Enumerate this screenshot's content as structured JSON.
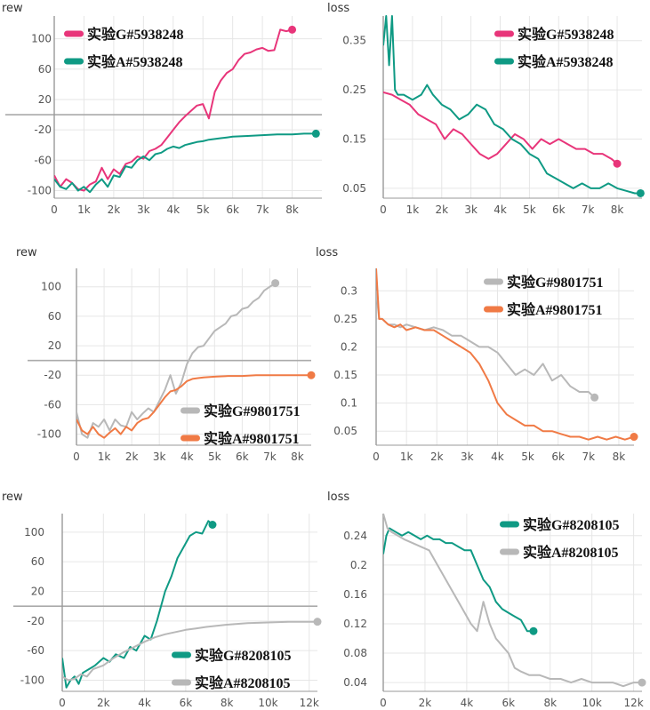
{
  "colors": {
    "pink": "#e8357a",
    "teal": "#0f9a84",
    "gray": "#b8b8b8",
    "orange": "#f07a45",
    "grid": "#e6e6e6",
    "axis": "#999999",
    "ref": "#aaaaaa"
  },
  "chart_data": [
    {
      "type": "line",
      "title": "rew",
      "xlim": [
        0,
        9000
      ],
      "ylim": [
        -110,
        130
      ],
      "xticks": [
        0,
        1000,
        2000,
        3000,
        4000,
        5000,
        6000,
        7000,
        8000
      ],
      "xtick_labels": [
        "0",
        "1k",
        "2k",
        "3k",
        "4k",
        "5k",
        "6k",
        "7k",
        "8k"
      ],
      "yticks": [
        100,
        60,
        20,
        -20,
        -60,
        -100
      ],
      "ytick_labels": [
        "100",
        "60",
        "20",
        "-20",
        "-60",
        "-100"
      ],
      "reference_y": 0,
      "series": [
        {
          "name": "实验G#5938248",
          "color": "pink",
          "x": [
            0,
            200,
            400,
            600,
            800,
            1000,
            1200,
            1400,
            1600,
            1800,
            2000,
            2200,
            2400,
            2600,
            2800,
            3000,
            3200,
            3400,
            3600,
            3800,
            4000,
            4200,
            4400,
            4600,
            4800,
            5000,
            5200,
            5400,
            5600,
            5800,
            6000,
            6200,
            6400,
            6600,
            6800,
            7000,
            7200,
            7400,
            7600,
            7800,
            8000
          ],
          "y": [
            -80,
            -95,
            -85,
            -90,
            -98,
            -100,
            -92,
            -88,
            -70,
            -85,
            -72,
            -78,
            -65,
            -62,
            -55,
            -58,
            -48,
            -45,
            -40,
            -30,
            -20,
            -10,
            -2,
            5,
            12,
            14,
            -5,
            30,
            45,
            55,
            60,
            72,
            80,
            82,
            86,
            88,
            84,
            85,
            112,
            110,
            112
          ]
        },
        {
          "name": "实验A#5938248",
          "color": "teal",
          "x": [
            0,
            200,
            400,
            600,
            800,
            1000,
            1200,
            1400,
            1600,
            1800,
            2000,
            2200,
            2400,
            2600,
            2800,
            3000,
            3200,
            3400,
            3600,
            3800,
            4000,
            4200,
            4400,
            4600,
            4800,
            5000,
            5200,
            5400,
            5600,
            5800,
            6000,
            6500,
            7000,
            7500,
            8000,
            8400,
            8800
          ],
          "y": [
            -85,
            -95,
            -98,
            -90,
            -100,
            -95,
            -102,
            -92,
            -85,
            -95,
            -80,
            -82,
            -68,
            -70,
            -60,
            -55,
            -60,
            -52,
            -50,
            -45,
            -42,
            -44,
            -40,
            -38,
            -36,
            -35,
            -33,
            -32,
            -31,
            -30,
            -29,
            -28,
            -27,
            -26,
            -26,
            -25,
            -25
          ]
        }
      ]
    },
    {
      "type": "line",
      "title": "loss",
      "xlim": [
        0,
        8850
      ],
      "ylim": [
        0.03,
        0.4
      ],
      "xticks": [
        0,
        1000,
        2000,
        3000,
        4000,
        5000,
        6000,
        7000,
        8000
      ],
      "xtick_labels": [
        "0",
        "1k",
        "2k",
        "3k",
        "4k",
        "5k",
        "6k",
        "7k",
        "8k"
      ],
      "yticks": [
        0.35,
        0.25,
        0.15,
        0.05
      ],
      "ytick_labels": [
        "0.35",
        "0.25",
        "0.15",
        "0.05"
      ],
      "series": [
        {
          "name": "实验G#5938248",
          "color": "pink",
          "x": [
            0,
            300,
            600,
            900,
            1200,
            1500,
            1800,
            2100,
            2400,
            2700,
            3000,
            3300,
            3600,
            3900,
            4200,
            4500,
            4800,
            5100,
            5400,
            5700,
            6000,
            6300,
            6600,
            6900,
            7200,
            7500,
            7800,
            8000
          ],
          "y": [
            0.245,
            0.24,
            0.23,
            0.22,
            0.2,
            0.19,
            0.18,
            0.15,
            0.17,
            0.16,
            0.14,
            0.12,
            0.11,
            0.12,
            0.14,
            0.16,
            0.15,
            0.13,
            0.15,
            0.14,
            0.15,
            0.14,
            0.13,
            0.13,
            0.12,
            0.12,
            0.11,
            0.1
          ]
        },
        {
          "name": "实验A#5938248",
          "color": "teal",
          "x": [
            0,
            100,
            200,
            300,
            400,
            500,
            700,
            1000,
            1300,
            1500,
            1700,
            2000,
            2300,
            2600,
            2900,
            3200,
            3500,
            3800,
            4100,
            4400,
            4700,
            5000,
            5300,
            5600,
            5900,
            6200,
            6500,
            6800,
            7100,
            7400,
            7700,
            8000,
            8300,
            8600,
            8800
          ],
          "y": [
            0.34,
            0.4,
            0.3,
            0.4,
            0.25,
            0.24,
            0.24,
            0.23,
            0.24,
            0.26,
            0.24,
            0.22,
            0.21,
            0.19,
            0.2,
            0.22,
            0.21,
            0.18,
            0.17,
            0.15,
            0.14,
            0.12,
            0.11,
            0.08,
            0.07,
            0.06,
            0.05,
            0.06,
            0.05,
            0.05,
            0.06,
            0.05,
            0.045,
            0.04,
            0.04
          ]
        }
      ]
    },
    {
      "type": "line",
      "title": "rew",
      "xlim": [
        0,
        8500
      ],
      "ylim": [
        -115,
        125
      ],
      "xticks": [
        0,
        1000,
        2000,
        3000,
        4000,
        5000,
        6000,
        7000,
        8000
      ],
      "xtick_labels": [
        "0",
        "1k",
        "2k",
        "3k",
        "4k",
        "5k",
        "6k",
        "7k",
        "8k"
      ],
      "yticks": [
        100,
        60,
        20,
        -20,
        -60,
        -100
      ],
      "ytick_labels": [
        "100",
        "60",
        "20",
        "-20",
        "-60",
        "-100"
      ],
      "reference_y": 0,
      "series": [
        {
          "name": "实验G#9801751",
          "color": "gray",
          "x": [
            0,
            200,
            400,
            600,
            800,
            1000,
            1200,
            1400,
            1600,
            1800,
            2000,
            2200,
            2400,
            2600,
            2800,
            3000,
            3200,
            3400,
            3600,
            3800,
            4000,
            4200,
            4400,
            4600,
            4800,
            5000,
            5200,
            5400,
            5600,
            5800,
            6000,
            6200,
            6400,
            6600,
            6800,
            7000,
            7200
          ],
          "y": [
            -70,
            -100,
            -105,
            -85,
            -90,
            -80,
            -95,
            -80,
            -88,
            -90,
            -70,
            -80,
            -72,
            -65,
            -70,
            -55,
            -40,
            -20,
            -45,
            -30,
            -5,
            10,
            18,
            20,
            30,
            40,
            45,
            50,
            60,
            62,
            70,
            72,
            80,
            85,
            95,
            100,
            105
          ]
        },
        {
          "name": "实验A#9801751",
          "color": "orange",
          "x": [
            0,
            200,
            400,
            600,
            800,
            1000,
            1200,
            1400,
            1600,
            1800,
            2000,
            2200,
            2400,
            2600,
            2800,
            3000,
            3200,
            3400,
            3600,
            3800,
            4000,
            4200,
            4400,
            4600,
            5000,
            5500,
            6000,
            6500,
            7000,
            7500,
            8000,
            8500
          ],
          "y": [
            -80,
            -95,
            -100,
            -90,
            -100,
            -105,
            -98,
            -92,
            -100,
            -90,
            -95,
            -85,
            -80,
            -78,
            -70,
            -60,
            -50,
            -42,
            -40,
            -35,
            -28,
            -25,
            -24,
            -23,
            -22,
            -21,
            -21,
            -20,
            -20,
            -20,
            -20,
            -20
          ]
        }
      ]
    },
    {
      "type": "line",
      "title": "loss",
      "xlim": [
        0,
        8500
      ],
      "ylim": [
        0.025,
        0.34
      ],
      "xticks": [
        0,
        1000,
        2000,
        3000,
        4000,
        5000,
        6000,
        7000,
        8000
      ],
      "xtick_labels": [
        "0",
        "1k",
        "2k",
        "3k",
        "4k",
        "5k",
        "6k",
        "7k",
        "8k"
      ],
      "yticks": [
        0.3,
        0.25,
        0.2,
        0.15,
        0.1,
        0.05
      ],
      "ytick_labels": [
        "0.3",
        "0.25",
        "0.2",
        "0.15",
        "0.1",
        "0.05"
      ],
      "series": [
        {
          "name": "实验G#9801751",
          "color": "gray",
          "x": [
            0,
            100,
            200,
            400,
            600,
            800,
            1000,
            1300,
            1600,
            1900,
            2200,
            2500,
            2800,
            3100,
            3400,
            3700,
            4000,
            4300,
            4600,
            4900,
            5200,
            5500,
            5800,
            6100,
            6400,
            6700,
            7000,
            7200
          ],
          "y": [
            0.3,
            0.25,
            0.25,
            0.24,
            0.24,
            0.235,
            0.24,
            0.235,
            0.23,
            0.235,
            0.23,
            0.22,
            0.22,
            0.21,
            0.2,
            0.2,
            0.19,
            0.17,
            0.15,
            0.16,
            0.15,
            0.17,
            0.14,
            0.15,
            0.13,
            0.12,
            0.12,
            0.11
          ]
        },
        {
          "name": "实验A#9801751",
          "color": "orange",
          "x": [
            0,
            100,
            200,
            400,
            600,
            800,
            1000,
            1300,
            1600,
            1900,
            2200,
            2500,
            2800,
            3100,
            3400,
            3700,
            4000,
            4300,
            4600,
            4900,
            5200,
            5500,
            5800,
            6100,
            6400,
            6700,
            7000,
            7300,
            7600,
            7900,
            8200,
            8500
          ],
          "y": [
            0.34,
            0.25,
            0.25,
            0.24,
            0.235,
            0.24,
            0.23,
            0.235,
            0.23,
            0.23,
            0.22,
            0.21,
            0.2,
            0.19,
            0.17,
            0.14,
            0.1,
            0.08,
            0.07,
            0.06,
            0.06,
            0.05,
            0.05,
            0.045,
            0.04,
            0.04,
            0.035,
            0.04,
            0.035,
            0.04,
            0.035,
            0.04
          ]
        }
      ]
    },
    {
      "type": "line",
      "title": "rew",
      "xlim": [
        0,
        12400
      ],
      "ylim": [
        -115,
        125
      ],
      "xticks": [
        0,
        2000,
        4000,
        6000,
        8000,
        10000,
        12000
      ],
      "xtick_labels": [
        "0",
        "2k",
        "4k",
        "6k",
        "8k",
        "10k",
        "12k"
      ],
      "yticks": [
        100,
        60,
        20,
        -20,
        -60,
        -100
      ],
      "ytick_labels": [
        "100",
        "60",
        "20",
        "-20",
        "-60",
        "-100"
      ],
      "reference_y": 0,
      "series": [
        {
          "name": "实验G#8208105",
          "color": "teal",
          "x": [
            0,
            200,
            400,
            600,
            800,
            1000,
            1300,
            1600,
            2000,
            2300,
            2600,
            3000,
            3300,
            3600,
            4000,
            4300,
            4600,
            5000,
            5300,
            5600,
            5900,
            6200,
            6500,
            6800,
            7100,
            7300
          ],
          "y": [
            -70,
            -110,
            -100,
            -95,
            -105,
            -90,
            -85,
            -80,
            -70,
            -75,
            -65,
            -70,
            -55,
            -60,
            -40,
            -45,
            -20,
            20,
            40,
            65,
            80,
            95,
            100,
            98,
            115,
            110
          ]
        },
        {
          "name": "实验A#8208105",
          "color": "gray",
          "x": [
            0,
            300,
            600,
            900,
            1200,
            1500,
            2000,
            2500,
            3000,
            3500,
            4000,
            4500,
            5000,
            5500,
            6000,
            6500,
            7000,
            8000,
            9000,
            10000,
            11000,
            12000,
            12400
          ],
          "y": [
            -95,
            -100,
            -98,
            -92,
            -95,
            -85,
            -80,
            -70,
            -62,
            -55,
            -48,
            -42,
            -38,
            -35,
            -32,
            -30,
            -28,
            -25,
            -23,
            -22,
            -21,
            -21,
            -21
          ]
        }
      ]
    },
    {
      "type": "line",
      "title": "loss",
      "xlim": [
        0,
        12400
      ],
      "ylim": [
        0.028,
        0.27
      ],
      "xticks": [
        0,
        2000,
        4000,
        6000,
        8000,
        10000,
        12000
      ],
      "xtick_labels": [
        "0",
        "2k",
        "4k",
        "6k",
        "8k",
        "10k",
        "12k"
      ],
      "yticks": [
        0.24,
        0.2,
        0.16,
        0.12,
        0.08,
        0.04
      ],
      "ytick_labels": [
        "0.24",
        "0.2",
        "0.16",
        "0.12",
        "0.08",
        "0.04"
      ],
      "series": [
        {
          "name": "实验G#8208105",
          "color": "teal",
          "x": [
            0,
            150,
            300,
            600,
            900,
            1200,
            1500,
            1800,
            2100,
            2400,
            2700,
            3000,
            3300,
            3600,
            3900,
            4200,
            4500,
            4800,
            5100,
            5400,
            5700,
            6000,
            6300,
            6600,
            6900,
            7200
          ],
          "y": [
            0.215,
            0.24,
            0.25,
            0.245,
            0.24,
            0.245,
            0.24,
            0.235,
            0.24,
            0.235,
            0.235,
            0.23,
            0.23,
            0.225,
            0.22,
            0.22,
            0.2,
            0.18,
            0.17,
            0.15,
            0.14,
            0.135,
            0.13,
            0.125,
            0.11,
            0.11
          ]
        },
        {
          "name": "实验A#8208105",
          "color": "gray",
          "x": [
            0,
            200,
            400,
            700,
            1000,
            1400,
            1800,
            2200,
            2600,
            3000,
            3400,
            3800,
            4200,
            4500,
            4800,
            5100,
            5400,
            5700,
            6000,
            6300,
            6600,
            7000,
            7500,
            8000,
            8500,
            9000,
            9500,
            10000,
            10500,
            11000,
            11500,
            12000,
            12400
          ],
          "y": [
            0.27,
            0.25,
            0.245,
            0.24,
            0.235,
            0.23,
            0.225,
            0.22,
            0.2,
            0.18,
            0.16,
            0.14,
            0.12,
            0.11,
            0.15,
            0.12,
            0.1,
            0.09,
            0.08,
            0.06,
            0.055,
            0.05,
            0.05,
            0.045,
            0.045,
            0.04,
            0.045,
            0.04,
            0.04,
            0.04,
            0.035,
            0.04,
            0.04
          ]
        }
      ]
    }
  ]
}
